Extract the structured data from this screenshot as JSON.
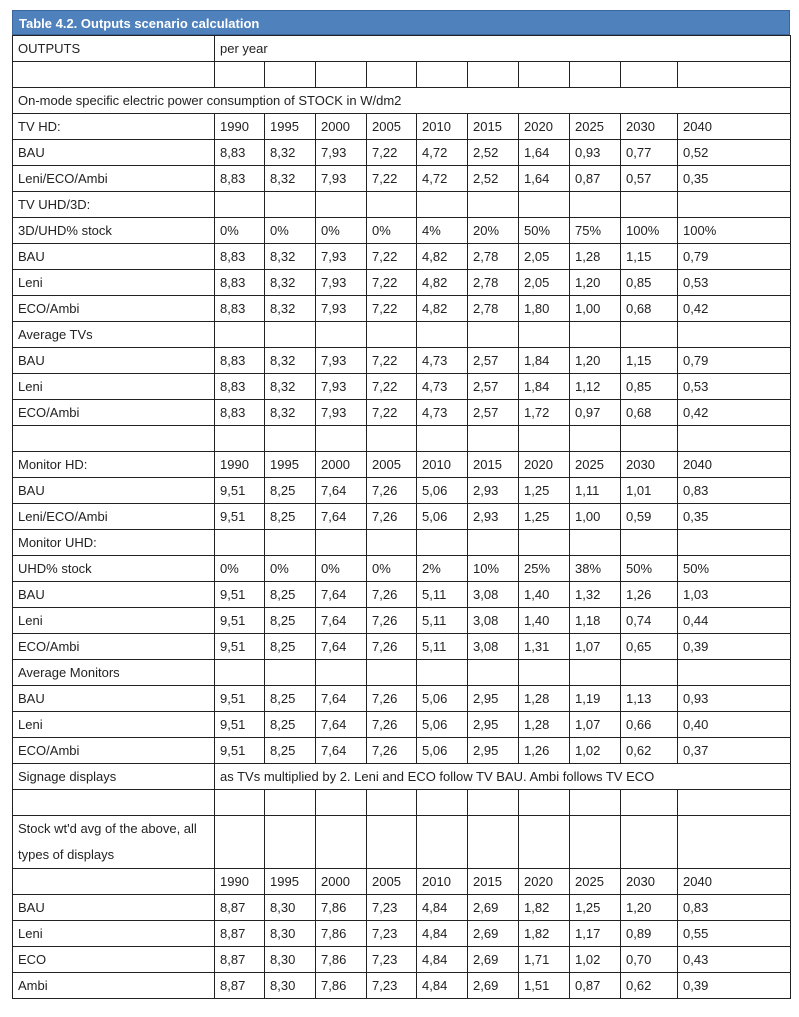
{
  "title": "Table 4.2. Outputs scenario calculation",
  "rows": [
    {
      "label": "OUTPUTS",
      "note": "per year"
    },
    [],
    {
      "heading": "On-mode specific electric power consumption of STOCK in W/dm2"
    },
    [
      "TV HD:",
      "1990",
      "1995",
      "2000",
      "2005",
      "2010",
      "2015",
      "2020",
      "2025",
      "2030",
      "2040"
    ],
    [
      "BAU",
      "8,83",
      "8,32",
      "7,93",
      "7,22",
      "4,72",
      "2,52",
      "1,64",
      "0,93",
      "0,77",
      "0,52"
    ],
    [
      "Leni/ECO/Ambi",
      "8,83",
      "8,32",
      "7,93",
      "7,22",
      "4,72",
      "2,52",
      "1,64",
      "0,87",
      "0,57",
      "0,35"
    ],
    [
      "TV UHD/3D:"
    ],
    [
      "3D/UHD% stock",
      "0%",
      "0%",
      "0%",
      "0%",
      "4%",
      "20%",
      "50%",
      "75%",
      "100%",
      "100%"
    ],
    [
      "BAU",
      "8,83",
      "8,32",
      "7,93",
      "7,22",
      "4,82",
      "2,78",
      "2,05",
      "1,28",
      "1,15",
      "0,79"
    ],
    [
      "Leni",
      "8,83",
      "8,32",
      "7,93",
      "7,22",
      "4,82",
      "2,78",
      "2,05",
      "1,20",
      "0,85",
      "0,53"
    ],
    [
      "ECO/Ambi",
      "8,83",
      "8,32",
      "7,93",
      "7,22",
      "4,82",
      "2,78",
      "1,80",
      "1,00",
      "0,68",
      "0,42"
    ],
    [
      "Average TVs"
    ],
    [
      "BAU",
      "8,83",
      "8,32",
      "7,93",
      "7,22",
      "4,73",
      "2,57",
      "1,84",
      "1,20",
      "1,15",
      "0,79"
    ],
    [
      "Leni",
      "8,83",
      "8,32",
      "7,93",
      "7,22",
      "4,73",
      "2,57",
      "1,84",
      "1,12",
      "0,85",
      "0,53"
    ],
    [
      "ECO/Ambi",
      "8,83",
      "8,32",
      "7,93",
      "7,22",
      "4,73",
      "2,57",
      "1,72",
      "0,97",
      "0,68",
      "0,42"
    ],
    [],
    [
      "Monitor HD:",
      "1990",
      "1995",
      "2000",
      "2005",
      "2010",
      "2015",
      "2020",
      "2025",
      "2030",
      "2040"
    ],
    [
      "BAU",
      "9,51",
      "8,25",
      "7,64",
      "7,26",
      "5,06",
      "2,93",
      "1,25",
      "1,11",
      "1,01",
      "0,83"
    ],
    [
      "Leni/ECO/Ambi",
      "9,51",
      "8,25",
      "7,64",
      "7,26",
      "5,06",
      "2,93",
      "1,25",
      "1,00",
      "0,59",
      "0,35"
    ],
    [
      "Monitor UHD:"
    ],
    [
      "UHD% stock",
      "0%",
      "0%",
      "0%",
      "0%",
      "2%",
      "10%",
      "25%",
      "38%",
      "50%",
      "50%"
    ],
    [
      "BAU",
      "9,51",
      "8,25",
      "7,64",
      "7,26",
      "5,11",
      "3,08",
      "1,40",
      "1,32",
      "1,26",
      "1,03"
    ],
    [
      "Leni",
      "9,51",
      "8,25",
      "7,64",
      "7,26",
      "5,11",
      "3,08",
      "1,40",
      "1,18",
      "0,74",
      "0,44"
    ],
    [
      "ECO/Ambi",
      "9,51",
      "8,25",
      "7,64",
      "7,26",
      "5,11",
      "3,08",
      "1,31",
      "1,07",
      "0,65",
      "0,39"
    ],
    [
      "Average Monitors"
    ],
    [
      "BAU",
      "9,51",
      "8,25",
      "7,64",
      "7,26",
      "5,06",
      "2,95",
      "1,28",
      "1,19",
      "1,13",
      "0,93"
    ],
    [
      "Leni",
      "9,51",
      "8,25",
      "7,64",
      "7,26",
      "5,06",
      "2,95",
      "1,28",
      "1,07",
      "0,66",
      "0,40"
    ],
    [
      "ECO/Ambi",
      "9,51",
      "8,25",
      "7,64",
      "7,26",
      "5,06",
      "2,95",
      "1,26",
      "1,02",
      "0,62",
      "0,37"
    ],
    {
      "label": "Signage displays",
      "note": "as TVs multiplied by 2. Leni and ECO follow TV BAU. Ambi follows TV ECO"
    },
    [],
    [
      "Stock wt'd avg of the above, all types of displays"
    ],
    [
      null,
      "1990",
      "1995",
      "2000",
      "2005",
      "2010",
      "2015",
      "2020",
      "2025",
      "2030",
      "2040"
    ],
    [
      "BAU",
      "8,87",
      "8,30",
      "7,86",
      "7,23",
      "4,84",
      "2,69",
      "1,82",
      "1,25",
      "1,20",
      "0,83"
    ],
    [
      "Leni",
      "8,87",
      "8,30",
      "7,86",
      "7,23",
      "4,84",
      "2,69",
      "1,82",
      "1,17",
      "0,89",
      "0,55"
    ],
    [
      "ECO",
      "8,87",
      "8,30",
      "7,86",
      "7,23",
      "4,84",
      "2,69",
      "1,71",
      "1,02",
      "0,70",
      "0,43"
    ],
    [
      "Ambi",
      "8,87",
      "8,30",
      "7,86",
      "7,23",
      "4,84",
      "2,69",
      "1,51",
      "0,87",
      "0,62",
      "0,39"
    ]
  ]
}
